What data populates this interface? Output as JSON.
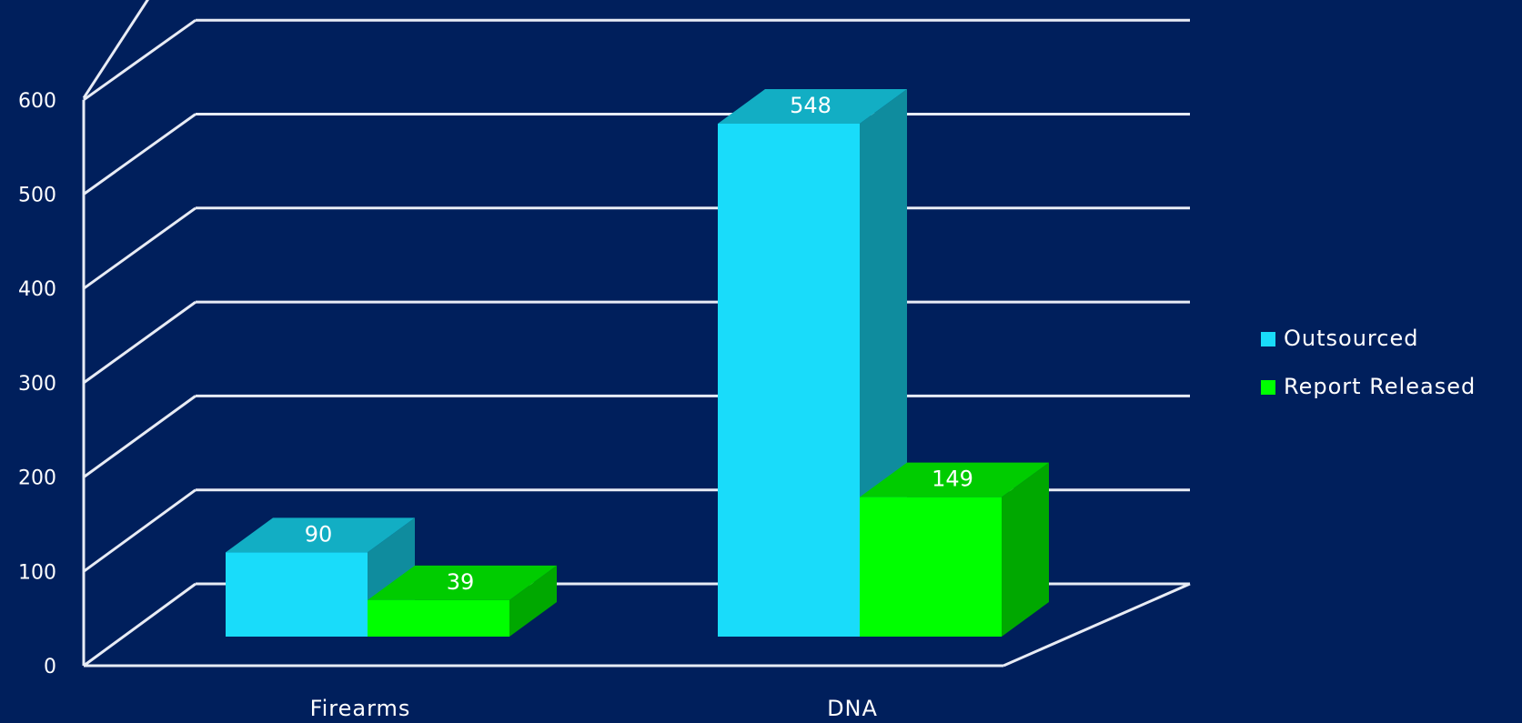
{
  "colors": {
    "background": "#001f5c",
    "gridline": "#e8ecf5",
    "outsourced_front": "#19dcfa",
    "outsourced_top": "#12aec4",
    "outsourced_side": "#0f8c9e",
    "released_front": "#00ff00",
    "released_top": "#00cc00",
    "released_side": "#00a800"
  },
  "chart_data": {
    "type": "bar",
    "style": "3d-clustered-column",
    "categories": [
      "Firearms",
      "DNA"
    ],
    "series": [
      {
        "name": "Outsourced",
        "values": [
          90,
          548
        ],
        "color": "#19dcfa"
      },
      {
        "name": "Report Released",
        "values": [
          39,
          149
        ],
        "color": "#00ff00"
      }
    ],
    "y_ticks": [
      "0",
      "100",
      "200",
      "300",
      "400",
      "500",
      "600"
    ],
    "ylim": [
      0,
      600
    ],
    "grid": true,
    "legend": "right",
    "data_labels": true
  }
}
